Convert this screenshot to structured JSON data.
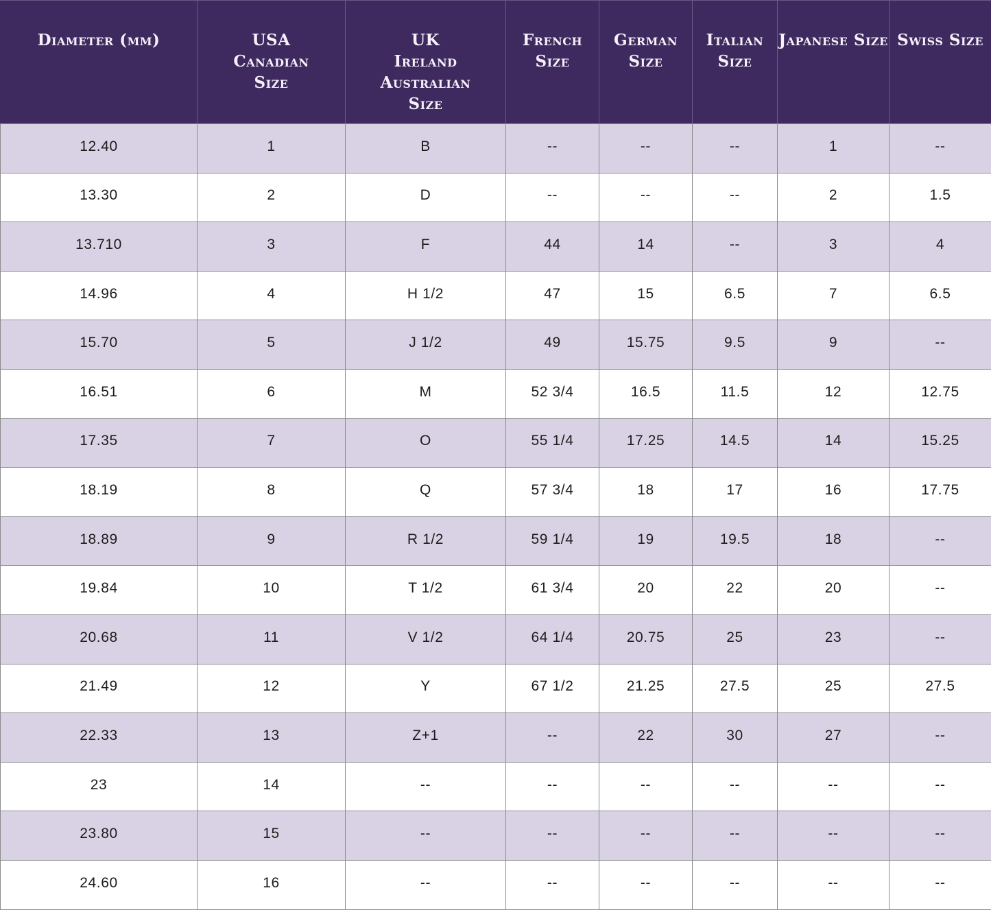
{
  "chart_data": {
    "type": "table",
    "columns": [
      "Diameter (mm)",
      "USA\nCanadian\nSize",
      "UK\nIreland\nAustralian\nSize",
      "French\nSize",
      "German\nSize",
      "Italian\nSize",
      "Japanese Size",
      "Swiss Size"
    ],
    "rows": [
      [
        "12.40",
        "1",
        "B",
        "--",
        "--",
        "--",
        "1",
        "--"
      ],
      [
        "13.30",
        "2",
        "D",
        "--",
        "--",
        "--",
        "2",
        "1.5"
      ],
      [
        "13.710",
        "3",
        "F",
        "44",
        "14",
        "--",
        "3",
        "4"
      ],
      [
        "14.96",
        "4",
        "H 1/2",
        "47",
        "15",
        "6.5",
        "7",
        "6.5"
      ],
      [
        "15.70",
        "5",
        "J 1/2",
        "49",
        "15.75",
        "9.5",
        "9",
        "--"
      ],
      [
        "16.51",
        "6",
        "M",
        "52 3/4",
        "16.5",
        "11.5",
        "12",
        "12.75"
      ],
      [
        "17.35",
        "7",
        "O",
        "55 1/4",
        "17.25",
        "14.5",
        "14",
        "15.25"
      ],
      [
        "18.19",
        "8",
        "Q",
        "57 3/4",
        "18",
        "17",
        "16",
        "17.75"
      ],
      [
        "18.89",
        "9",
        "R 1/2",
        "59 1/4",
        "19",
        "19.5",
        "18",
        "--"
      ],
      [
        "19.84",
        "10",
        "T 1/2",
        "61 3/4",
        "20",
        "22",
        "20",
        "--"
      ],
      [
        "20.68",
        "11",
        "V 1/2",
        "64 1/4",
        "20.75",
        "25",
        "23",
        "--"
      ],
      [
        "21.49",
        "12",
        "Y",
        "67 1/2",
        "21.25",
        "27.5",
        "25",
        "27.5"
      ],
      [
        "22.33",
        "13",
        "Z+1",
        "--",
        "22",
        "30",
        "27",
        "--"
      ],
      [
        "23",
        "14",
        "--",
        "--",
        "--",
        "--",
        "--",
        "--"
      ],
      [
        "23.80",
        "15",
        "--",
        "--",
        "--",
        "--",
        "--",
        "--"
      ],
      [
        "24.60",
        "16",
        "--",
        "--",
        "--",
        "--",
        "--",
        "--"
      ]
    ],
    "layout": {
      "header_position": "top",
      "row_striping": "odd-rows-lavender",
      "grid": true
    }
  },
  "colors": {
    "header_background": "#3e2a5e",
    "header_text": "#f5f0fa",
    "stripe_row_background": "#d9d2e4",
    "plain_row_background": "#ffffff",
    "grid_border": "#8b8b8b",
    "cell_text": "#1c1c1c"
  }
}
